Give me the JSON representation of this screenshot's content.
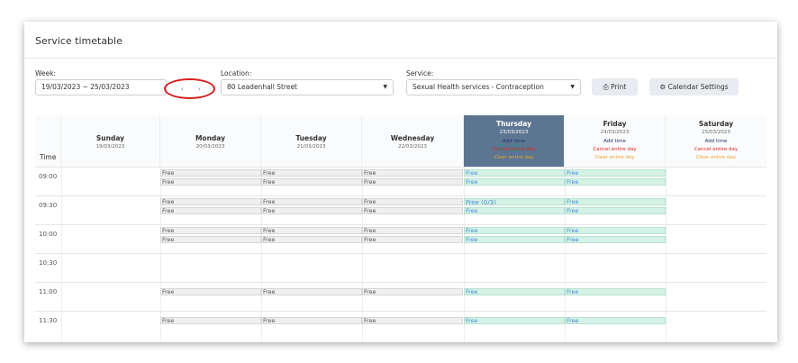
{
  "page": {
    "title": "Service timetable"
  },
  "filters": {
    "week_label": "Week:",
    "week_value": "19/03/2023 ~ 25/03/2023",
    "nav_prev": "‹",
    "nav_next": "›",
    "location_label": "Location:",
    "location_value": "80 Leadenhall Street",
    "service_label": "Service:",
    "service_value": "Sexual Health services - Contraception",
    "print_label": "Print",
    "calendar_settings_label": "Calendar Settings"
  },
  "timetable": {
    "time_header": "Time",
    "days": [
      {
        "name": "Sunday",
        "date": "19/03/2023"
      },
      {
        "name": "Monday",
        "date": "20/03/2023"
      },
      {
        "name": "Tuesday",
        "date": "21/03/2023"
      },
      {
        "name": "Wednesday",
        "date": "22/03/2023"
      },
      {
        "name": "Thursday",
        "date": "23/03/2023",
        "add": "Add time",
        "cancel": "Cancel entire day",
        "clear": "Clear entire day"
      },
      {
        "name": "Friday",
        "date": "24/03/2023",
        "add": "Add time",
        "cancel": "Cancel entire day",
        "clear": "Clear entire day"
      },
      {
        "name": "Saturday",
        "date": "25/03/2023",
        "add": "Add time",
        "cancel": "Cancel entire day",
        "clear": "Clear entire day"
      }
    ],
    "times": [
      "09:00",
      "09:30",
      "10:00",
      "10:30",
      "11:00",
      "11:30"
    ],
    "slot_free": "Free",
    "slot_free_count": "Free (0/3)"
  },
  "colors": {
    "active_header": "#5c7691",
    "highlight_ring": "#d62020",
    "free_green": "#d4f2e6"
  }
}
